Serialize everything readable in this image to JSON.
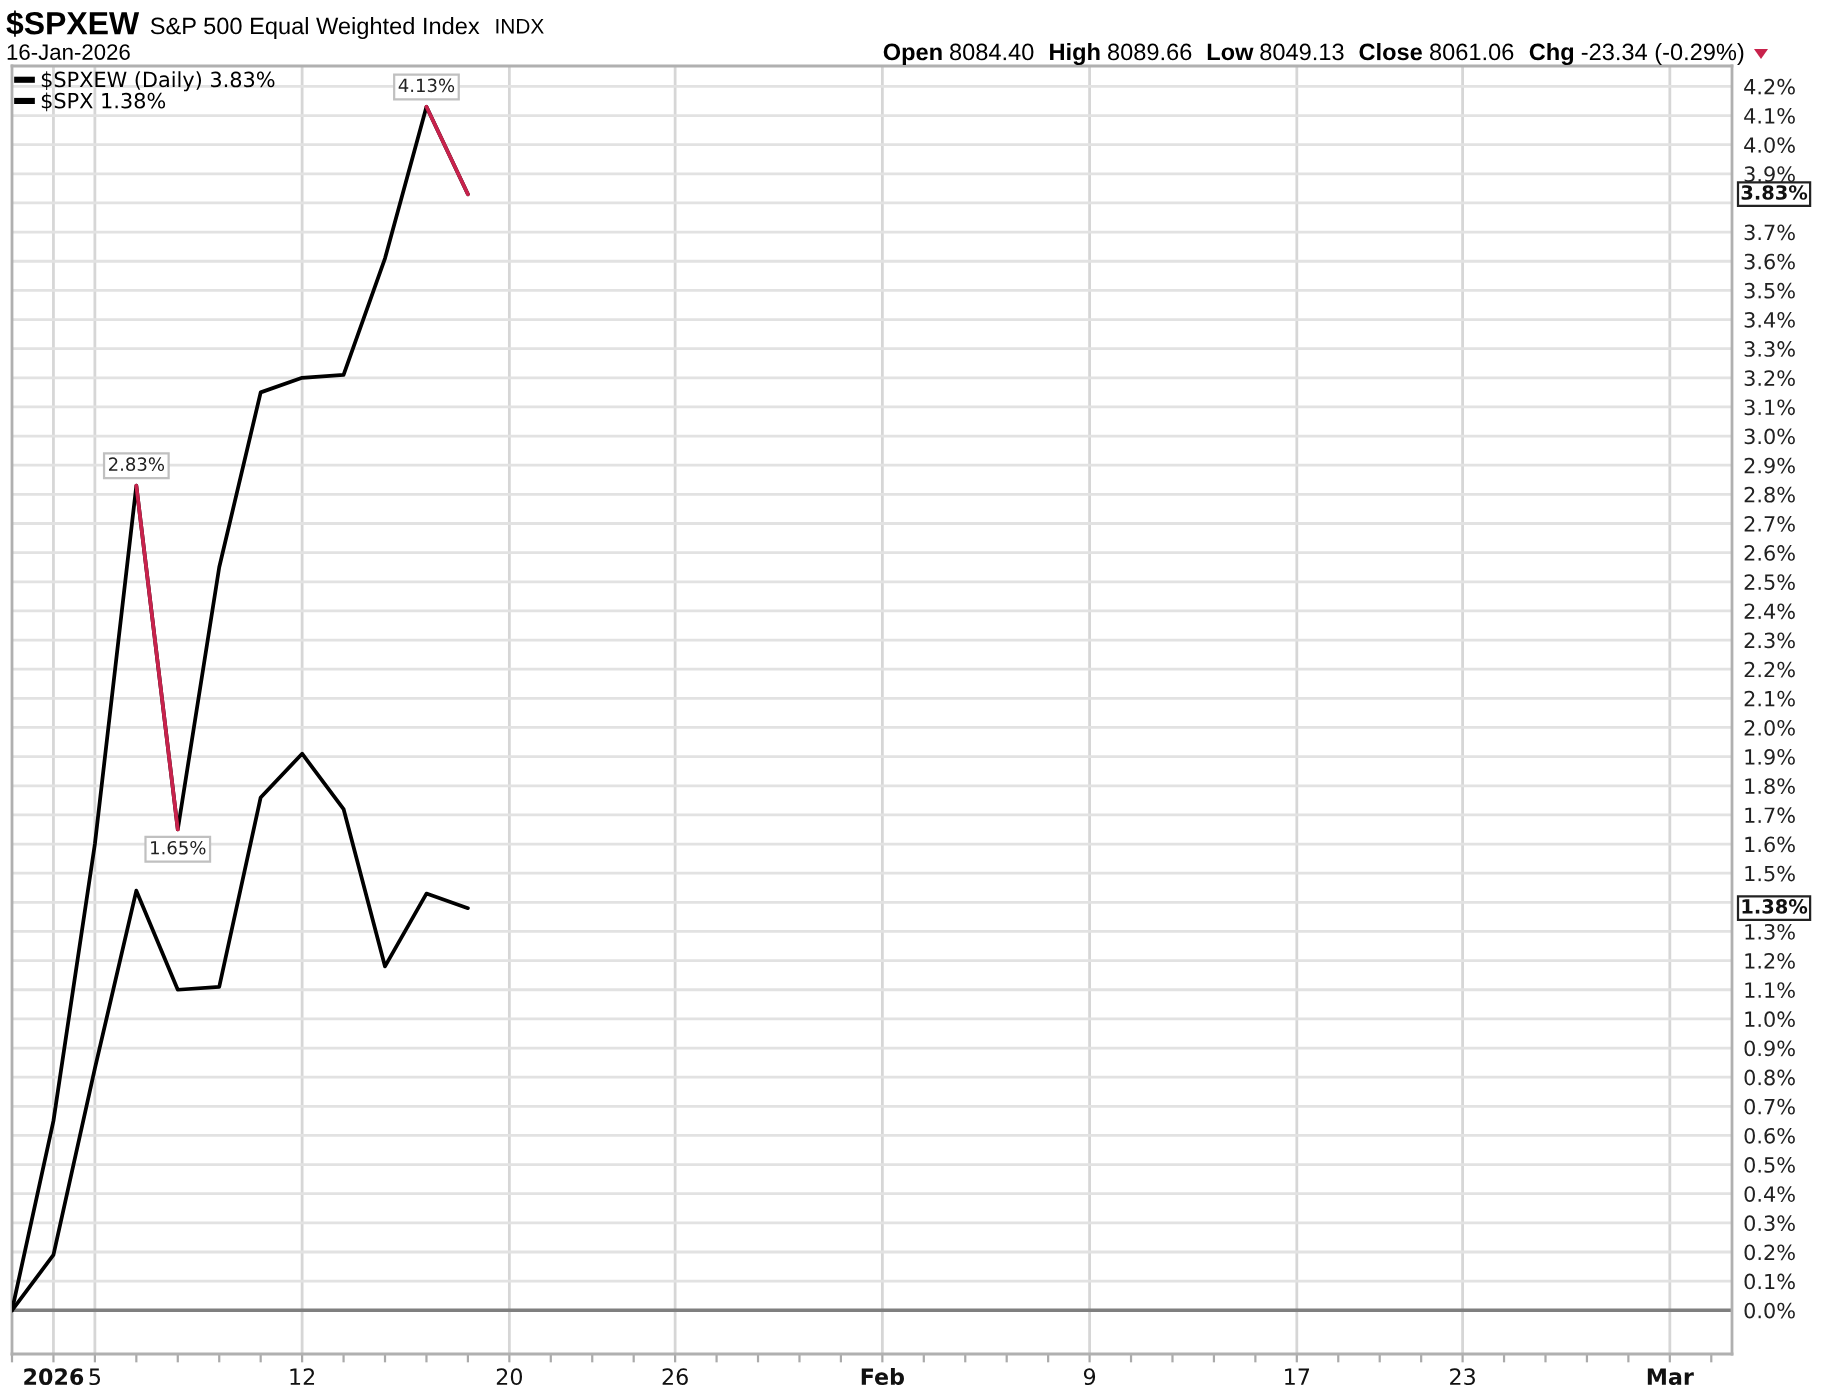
{
  "chart_data": {
    "type": "line",
    "title": "$SPXEW",
    "subtitle": "S&P 500 Equal Weighted Index",
    "categories": [
      null,
      "2026",
      "5",
      null,
      null,
      null,
      null,
      "12",
      null,
      null,
      null,
      null,
      "20",
      null,
      null,
      null,
      "26",
      null,
      null,
      null,
      null,
      "Feb",
      null,
      null,
      null,
      null,
      "9",
      null,
      null,
      null,
      null,
      "17",
      null,
      null,
      null,
      "23",
      null,
      null,
      null,
      null,
      "Mar",
      null
    ],
    "series": [
      {
        "name": "$SPXEW (Daily) 3.83%",
        "color": "#000000",
        "values": [
          0,
          0.65,
          1.6,
          2.83,
          1.65,
          2.55,
          3.15,
          3.2,
          3.21,
          3.61,
          4.13,
          3.83,
          null,
          null,
          null,
          null,
          null,
          null,
          null,
          null,
          null,
          null,
          null,
          null,
          null,
          null,
          null,
          null,
          null,
          null,
          null,
          null,
          null,
          null,
          null,
          null,
          null,
          null,
          null,
          null,
          null,
          null
        ],
        "value_labels": [
          null,
          null,
          null,
          "2.83%",
          "1.65%",
          null,
          null,
          null,
          null,
          null,
          "4.13%",
          null,
          null,
          null,
          null,
          null,
          null,
          null,
          null,
          null,
          null,
          null,
          null,
          null,
          null,
          null,
          null,
          null,
          null,
          null,
          null,
          null,
          null,
          null,
          null,
          null,
          null,
          null,
          null,
          null,
          null,
          null
        ]
      },
      {
        "name": "$SPX 1.38%",
        "color": "#000000",
        "values": [
          0,
          0.19,
          0.83,
          1.44,
          1.1,
          1.11,
          1.76,
          1.91,
          1.72,
          1.18,
          1.43,
          1.38,
          null,
          null,
          null,
          null,
          null,
          null,
          null,
          null,
          null,
          null,
          null,
          null,
          null,
          null,
          null,
          null,
          null,
          null,
          null,
          null,
          null,
          null,
          null,
          null,
          null,
          null,
          null,
          null,
          null,
          null
        ]
      },
      {
        "color": "#c8224c",
        "values": [
          null,
          null,
          null,
          2.83,
          1.65,
          null,
          null,
          null,
          null,
          null,
          4.13,
          3.83,
          null,
          null,
          null,
          null,
          null,
          null,
          null,
          null,
          null,
          null,
          null,
          null,
          null,
          null,
          null,
          null,
          null,
          null,
          null,
          null,
          null,
          null,
          null,
          null,
          null,
          null,
          null,
          null,
          null,
          null
        ]
      }
    ],
    "ylim": [
      -0.15,
      4.27
    ],
    "yticks": [
      {
        "value": 0,
        "label": "0.0%"
      },
      {
        "value": 0.1,
        "label": "0.1%"
      },
      {
        "value": 0.2,
        "label": "0.2%"
      },
      {
        "value": 0.3,
        "label": "0.3%"
      },
      {
        "value": 0.4,
        "label": "0.4%"
      },
      {
        "value": 0.5,
        "label": "0.5%"
      },
      {
        "value": 0.6,
        "label": "0.6%"
      },
      {
        "value": 0.7,
        "label": "0.7%"
      },
      {
        "value": 0.8,
        "label": "0.8%"
      },
      {
        "value": 0.9,
        "label": "0.9%"
      },
      {
        "value": 1.0,
        "label": "1.0%"
      },
      {
        "value": 1.1,
        "label": "1.1%"
      },
      {
        "value": 1.2,
        "label": "1.2%"
      },
      {
        "value": 1.3,
        "label": "1.3%"
      },
      {
        "value": 1.4,
        "label": null
      },
      {
        "value": 1.5,
        "label": "1.5%"
      },
      {
        "value": 1.6,
        "label": "1.6%"
      },
      {
        "value": 1.7,
        "label": "1.7%"
      },
      {
        "value": 1.8,
        "label": "1.8%"
      },
      {
        "value": 1.9,
        "label": "1.9%"
      },
      {
        "value": 2.0,
        "label": "2.0%"
      },
      {
        "value": 2.1,
        "label": "2.1%"
      },
      {
        "value": 2.2,
        "label": "2.2%"
      },
      {
        "value": 2.3,
        "label": "2.3%"
      },
      {
        "value": 2.4,
        "label": "2.4%"
      },
      {
        "value": 2.5,
        "label": "2.5%"
      },
      {
        "value": 2.6,
        "label": "2.6%"
      },
      {
        "value": 2.7,
        "label": "2.7%"
      },
      {
        "value": 2.8,
        "label": "2.8%"
      },
      {
        "value": 2.9,
        "label": "2.9%"
      },
      {
        "value": 3.0,
        "label": "3.0%"
      },
      {
        "value": 3.1,
        "label": "3.1%"
      },
      {
        "value": 3.2,
        "label": "3.2%"
      },
      {
        "value": 3.3,
        "label": "3.3%"
      },
      {
        "value": 3.4,
        "label": "3.4%"
      },
      {
        "value": 3.5,
        "label": "3.5%"
      },
      {
        "value": 3.6,
        "label": "3.6%"
      },
      {
        "value": 3.7,
        "label": "3.7%"
      },
      {
        "value": 3.8,
        "label": null
      },
      {
        "value": 3.9,
        "label": "3.9%"
      },
      {
        "value": 4.0,
        "label": "4.0%"
      },
      {
        "value": 4.1,
        "label": "4.1%"
      },
      {
        "value": 4.2,
        "label": "4.2%"
      }
    ],
    "grid": true,
    "legend": "top left",
    "ref_lines": [
      {
        "axis": "y",
        "value": 0,
        "color": "#7f7f7f"
      }
    ],
    "annotations": [
      "INDX",
      "16-Jan-2026",
      "Open 8084.40",
      "High 8089.66",
      "Low 8049.13",
      "Close 8061.06",
      "Chg -23.34 (-0.29%)",
      {
        "text": "3.83%",
        "y": 3.83
      },
      {
        "text": "1.38%",
        "y": 1.38
      }
    ]
  }
}
